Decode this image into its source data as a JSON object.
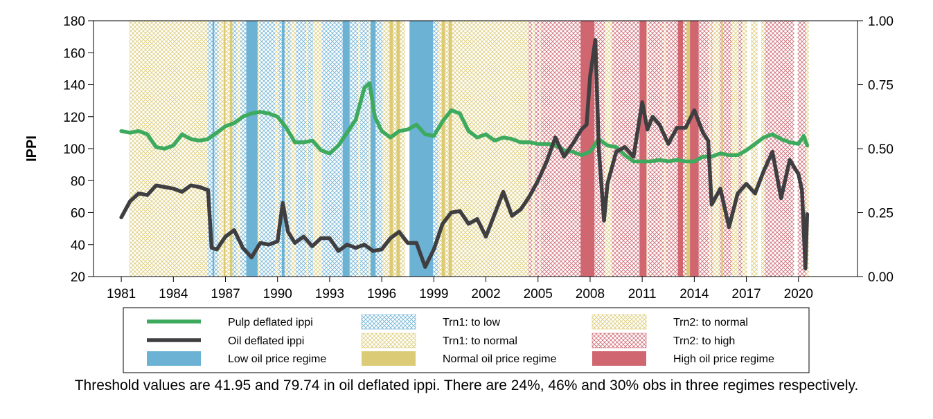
{
  "caption": "Threshold values are 41.95 and 79.74 in oil deflated ippi. There are 24%, 46% and 30% obs in three regimes respectively.",
  "chart_data": {
    "type": "line",
    "ylabel": "IPPI",
    "xlim": [
      1979.4,
      2023.4
    ],
    "ylim": [
      20,
      180
    ],
    "y2lim": [
      0,
      1
    ],
    "xticks": [
      1981,
      1984,
      1987,
      1990,
      1993,
      1996,
      1999,
      2002,
      2005,
      2008,
      2011,
      2014,
      2017,
      2020
    ],
    "yticks": [
      20,
      40,
      60,
      80,
      100,
      120,
      140,
      160,
      180
    ],
    "y2ticks": [
      "0.00",
      "0.25",
      "0.50",
      "0.75",
      "1.00"
    ],
    "legend_placement": "bottom",
    "colors": {
      "pulp": "#3daa5e",
      "oil": "#3f3f42",
      "low": "#6cb2d4",
      "normal": "#dccb76",
      "high": "#cf6670"
    },
    "series": [
      {
        "name": "Pulp deflated ippi",
        "x": [
          1981.0,
          1981.5,
          1982.0,
          1982.5,
          1983.0,
          1983.5,
          1984.0,
          1984.5,
          1985.0,
          1985.5,
          1986.0,
          1986.5,
          1987.0,
          1987.5,
          1988.0,
          1988.5,
          1989.0,
          1989.5,
          1990.0,
          1990.5,
          1991.0,
          1991.5,
          1992.0,
          1992.5,
          1993.0,
          1993.5,
          1994.0,
          1994.5,
          1995.0,
          1995.3,
          1995.6,
          1996.0,
          1996.5,
          1997.0,
          1997.5,
          1998.0,
          1998.5,
          1999.0,
          1999.5,
          2000.0,
          2000.5,
          2001.0,
          2001.5,
          2002.0,
          2002.5,
          2003.0,
          2003.5,
          2004.0,
          2004.5,
          2005.0,
          2005.5,
          2006.0,
          2006.5,
          2007.0,
          2007.5,
          2008.0,
          2008.5,
          2009.0,
          2009.5,
          2010.0,
          2010.5,
          2011.0,
          2011.5,
          2012.0,
          2012.5,
          2013.0,
          2013.5,
          2014.0,
          2014.5,
          2015.0,
          2015.5,
          2016.0,
          2016.5,
          2017.0,
          2017.5,
          2018.0,
          2018.5,
          2019.0,
          2019.5,
          2020.0,
          2020.3,
          2020.5
        ],
        "values": [
          111,
          110,
          111,
          109,
          101,
          100,
          102,
          109,
          106,
          105,
          106,
          110,
          114,
          116,
          120,
          122,
          123,
          122,
          120,
          113,
          104,
          104,
          105,
          99,
          97,
          102,
          110,
          118,
          138,
          141,
          120,
          111,
          107,
          111,
          112,
          115,
          109,
          108,
          117,
          124,
          122,
          111,
          107,
          109,
          105,
          107,
          106,
          104,
          104,
          103,
          103,
          102,
          99,
          98,
          96,
          98,
          106,
          102,
          101,
          96,
          92,
          92,
          92,
          93,
          92,
          93,
          92,
          92,
          95,
          95,
          97,
          96,
          96,
          99,
          103,
          107,
          109,
          106,
          104,
          103,
          108,
          102
        ]
      },
      {
        "name": "Oil deflated ippi",
        "x": [
          1981.0,
          1981.5,
          1982.0,
          1982.5,
          1983.0,
          1983.5,
          1984.0,
          1984.5,
          1985.0,
          1985.5,
          1986.0,
          1986.2,
          1986.5,
          1987.0,
          1987.5,
          1988.0,
          1988.5,
          1989.0,
          1989.5,
          1990.0,
          1990.3,
          1990.6,
          1991.0,
          1991.5,
          1992.0,
          1992.5,
          1993.0,
          1993.5,
          1994.0,
          1994.5,
          1995.0,
          1995.5,
          1996.0,
          1996.5,
          1997.0,
          1997.5,
          1998.0,
          1998.5,
          1999.0,
          1999.5,
          2000.0,
          2000.5,
          2001.0,
          2001.5,
          2002.0,
          2002.5,
          2003.0,
          2003.5,
          2004.0,
          2004.5,
          2005.0,
          2005.5,
          2006.0,
          2006.5,
          2007.0,
          2007.5,
          2007.8,
          2008.0,
          2008.3,
          2008.5,
          2008.8,
          2009.0,
          2009.5,
          2010.0,
          2010.5,
          2011.0,
          2011.3,
          2011.6,
          2012.0,
          2012.5,
          2013.0,
          2013.5,
          2014.0,
          2014.5,
          2014.8,
          2015.0,
          2015.5,
          2016.0,
          2016.5,
          2017.0,
          2017.5,
          2018.0,
          2018.5,
          2019.0,
          2019.5,
          2020.0,
          2020.2,
          2020.4,
          2020.5
        ],
        "values": [
          57,
          67,
          72,
          71,
          77,
          76,
          75,
          73,
          77,
          76,
          74,
          38,
          37,
          45,
          49,
          38,
          32,
          41,
          40,
          42,
          66,
          48,
          41,
          45,
          39,
          44,
          44,
          36,
          40,
          38,
          40,
          36,
          37,
          44,
          48,
          41,
          41,
          26,
          37,
          53,
          60,
          61,
          53,
          56,
          45,
          59,
          73,
          58,
          62,
          70,
          80,
          92,
          107,
          95,
          103,
          112,
          115,
          145,
          168,
          100,
          55,
          78,
          98,
          101,
          95,
          129,
          112,
          120,
          115,
          103,
          113,
          113,
          124,
          110,
          105,
          65,
          75,
          51,
          72,
          78,
          72,
          86,
          98,
          69,
          93,
          84,
          74,
          25,
          59
        ]
      }
    ],
    "regimes": [
      {
        "name": "Trn1: to low",
        "pattern": "cross",
        "color": "#6cb2d4",
        "spans": [
          [
            1985.95,
            1986.25
          ],
          [
            1986.35,
            1986.6
          ],
          [
            1987.4,
            1987.65
          ],
          [
            1987.85,
            1988.45
          ],
          [
            1988.95,
            1989.85
          ],
          [
            1990.05,
            1990.45
          ],
          [
            1990.55,
            1990.75
          ],
          [
            1991.05,
            1991.65
          ],
          [
            1991.75,
            1992.05
          ],
          [
            1992.55,
            1993.75
          ],
          [
            1994.15,
            1994.65
          ],
          [
            1994.75,
            1995.25
          ],
          [
            1995.65,
            1996.05
          ],
          [
            1998.95,
            1999.25
          ]
        ]
      },
      {
        "name": "Trn1: to normal",
        "pattern": "cross",
        "color": "#dccb76",
        "spans": [
          [
            1981.45,
            1985.95
          ],
          [
            1986.6,
            1986.9
          ],
          [
            1987.0,
            1987.25
          ],
          [
            1987.65,
            1987.85
          ],
          [
            1988.45,
            1988.95
          ],
          [
            1989.85,
            1990.05
          ],
          [
            1990.45,
            1990.55
          ],
          [
            1990.75,
            1991.05
          ],
          [
            1991.65,
            1991.75
          ],
          [
            1992.05,
            1992.55
          ],
          [
            1994.65,
            1994.75
          ],
          [
            1995.25,
            1995.35
          ],
          [
            1996.05,
            1996.45
          ],
          [
            1996.65,
            1996.85
          ],
          [
            1997.05,
            1997.35
          ],
          [
            1999.25,
            1999.45
          ],
          [
            1999.65,
            1999.85
          ],
          [
            2000.05,
            2004.45
          ]
        ]
      },
      {
        "name": "Trn2: to normal",
        "pattern": "cross",
        "color": "#dccb76",
        "spans": [
          [
            2004.65,
            2004.8
          ],
          [
            2005.05,
            2005.15
          ],
          [
            2008.85,
            2009.25
          ],
          [
            2011.25,
            2011.35
          ],
          [
            2012.25,
            2012.35
          ],
          [
            2014.85,
            2014.95
          ],
          [
            2015.05,
            2015.45
          ],
          [
            2016.15,
            2016.55
          ],
          [
            2016.75,
            2017.05
          ],
          [
            2017.25,
            2017.65
          ],
          [
            2017.85,
            2018.05
          ],
          [
            2020.45,
            2020.6
          ]
        ]
      },
      {
        "name": "Trn2: to high",
        "pattern": "cross",
        "color": "#cf6670",
        "spans": [
          [
            2004.45,
            2004.65
          ],
          [
            2004.8,
            2005.05
          ],
          [
            2005.15,
            2007.45
          ],
          [
            2008.25,
            2008.85
          ],
          [
            2009.25,
            2010.85
          ],
          [
            2011.35,
            2012.25
          ],
          [
            2012.35,
            2013.05
          ],
          [
            2013.35,
            2013.55
          ],
          [
            2014.25,
            2014.85
          ],
          [
            2014.95,
            2015.05
          ],
          [
            2015.45,
            2016.15
          ],
          [
            2016.55,
            2016.75
          ],
          [
            2018.05,
            2019.75
          ],
          [
            2019.95,
            2020.45
          ]
        ]
      },
      {
        "name": "Low oil price regime",
        "pattern": "solid",
        "color": "#6cb2d4",
        "spans": [
          [
            1986.25,
            1986.35
          ],
          [
            1988.2,
            1988.85
          ],
          [
            1990.25,
            1990.4
          ],
          [
            1993.75,
            1994.15
          ],
          [
            1995.35,
            1995.65
          ],
          [
            1997.6,
            1998.95
          ]
        ]
      },
      {
        "name": "Normal oil price regime",
        "pattern": "solid",
        "color": "#dccb76",
        "spans": [
          [
            1986.9,
            1987.0
          ],
          [
            1987.25,
            1987.4
          ],
          [
            1996.45,
            1996.65
          ],
          [
            1996.85,
            1997.05
          ],
          [
            1999.45,
            1999.65
          ],
          [
            1999.85,
            2000.05
          ],
          [
            2013.05,
            2013.35
          ],
          [
            2013.55,
            2013.75
          ],
          [
            2015.55,
            2015.65
          ]
        ]
      },
      {
        "name": "High oil price regime",
        "pattern": "solid",
        "color": "#cf6670",
        "spans": [
          [
            2007.45,
            2008.25
          ],
          [
            2010.85,
            2011.25
          ],
          [
            2013.05,
            2013.35
          ],
          [
            2013.75,
            2014.25
          ]
        ]
      }
    ],
    "legend": [
      [
        "Pulp deflated ippi",
        "Trn1: to low",
        "Trn2: to normal"
      ],
      [
        "Oil deflated ippi",
        "Trn1: to normal",
        "Trn2: to high"
      ],
      [
        "Low oil price regime",
        "Normal oil price regime",
        "High oil price regime"
      ]
    ]
  }
}
